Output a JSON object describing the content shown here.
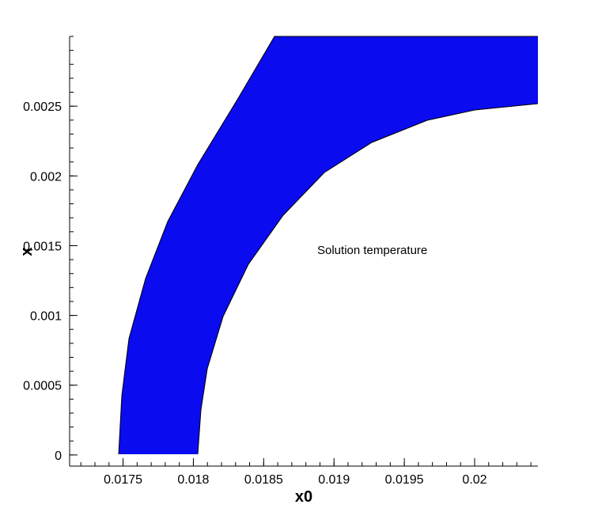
{
  "chart_data": {
    "type": "contour",
    "title": "",
    "xlabel": "x0",
    "ylabel": "x",
    "xlim": [
      0.01712,
      0.02045
    ],
    "ylim": [
      -8e-05,
      0.003
    ],
    "x_ticks": [
      {
        "value": 0.0175,
        "label": "0.0175"
      },
      {
        "value": 0.018,
        "label": "0.018"
      },
      {
        "value": 0.0185,
        "label": "0.0185"
      },
      {
        "value": 0.019,
        "label": "0.019"
      },
      {
        "value": 0.0195,
        "label": "0.0195"
      },
      {
        "value": 0.02,
        "label": "0.02"
      }
    ],
    "y_ticks": [
      {
        "value": 0,
        "label": "0"
      },
      {
        "value": 0.0005,
        "label": "0.0005"
      },
      {
        "value": 0.001,
        "label": "0.001"
      },
      {
        "value": 0.0015,
        "label": "0.0015"
      },
      {
        "value": 0.002,
        "label": "0.002"
      },
      {
        "value": 0.0025,
        "label": "0.0025"
      }
    ],
    "annotation": {
      "text": "Solution temperature"
    },
    "colors": {
      "background_field": "#0b0bf0",
      "palette": [
        "#0b0bf0",
        "#0848f8",
        "#0a7ff8",
        "#05b4f8",
        "#00e2f6",
        "#00f0c0",
        "#00f080",
        "#20e830",
        "#6af000",
        "#b8f000",
        "#f0f000",
        "#f8c800",
        "#f8a000",
        "#f87800",
        "#f85000"
      ]
    }
  }
}
